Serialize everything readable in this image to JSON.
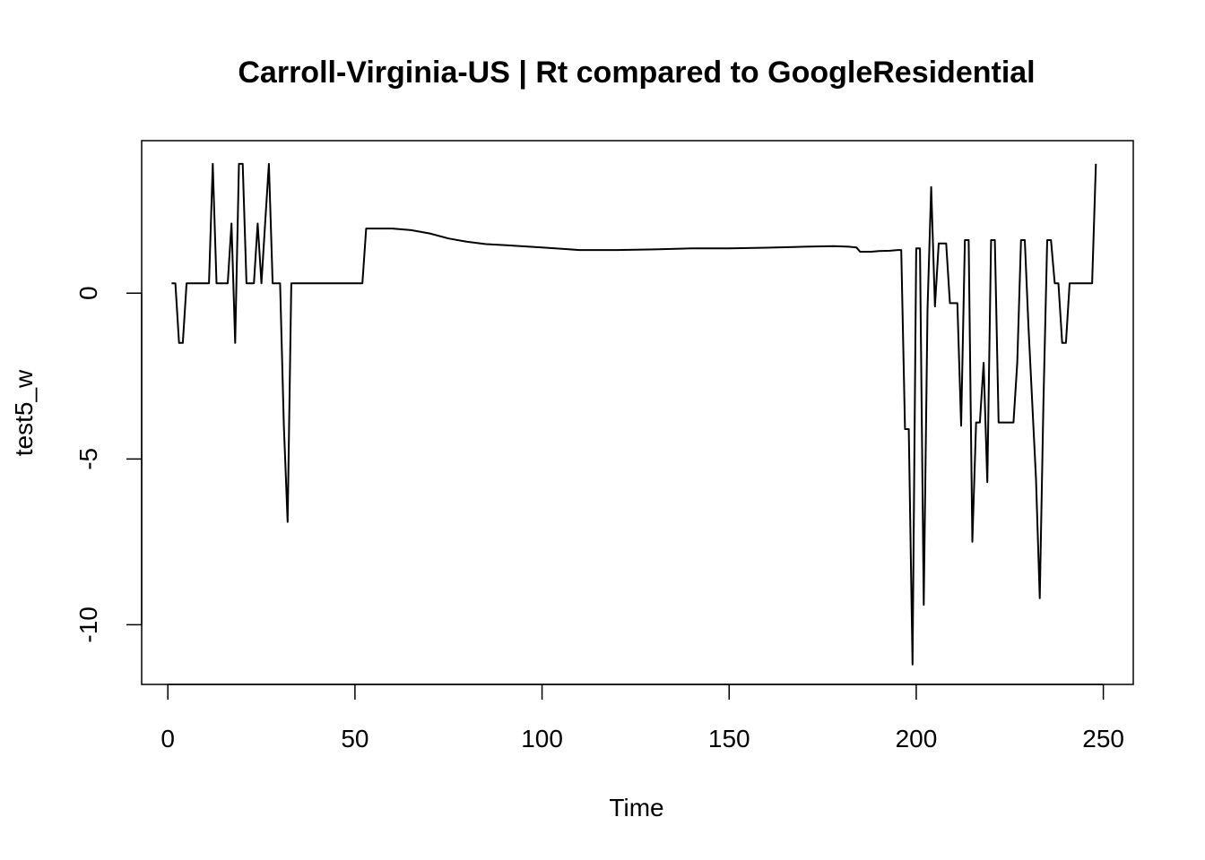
{
  "chart_data": {
    "type": "line",
    "title": "Carroll-Virginia-US | Rt compared to GoogleResidential",
    "xlabel": "Time",
    "ylabel": "test5_w",
    "xlim": [
      -7,
      258
    ],
    "ylim": [
      -11.8,
      4.6
    ],
    "x_ticks": [
      0,
      50,
      100,
      150,
      200,
      250
    ],
    "x_tick_labels": [
      "0",
      "50",
      "100",
      "150",
      "200",
      "250"
    ],
    "y_ticks": [
      -10,
      -5,
      0
    ],
    "y_tick_labels": [
      "-10",
      "-5",
      "0"
    ],
    "grid": false,
    "series": [
      {
        "color": "#000000",
        "x": [
          1,
          2,
          3,
          4,
          5,
          6,
          7,
          8,
          9,
          10,
          11,
          12,
          13,
          14,
          15,
          16,
          17,
          18,
          19,
          20,
          21,
          22,
          23,
          24,
          25,
          26,
          27,
          28,
          29,
          30,
          31,
          32,
          33,
          34,
          40,
          45,
          50,
          52,
          53,
          55,
          60,
          65,
          70,
          75,
          80,
          85,
          90,
          100,
          110,
          120,
          130,
          140,
          150,
          160,
          170,
          178,
          182,
          184,
          185,
          188,
          190,
          193,
          195,
          196,
          197,
          198,
          199,
          200,
          201,
          202,
          203,
          204,
          205,
          206,
          207,
          208,
          209,
          210,
          211,
          212,
          213,
          214,
          215,
          216,
          217,
          218,
          219,
          220,
          221,
          222,
          223,
          224,
          225,
          226,
          227,
          228,
          229,
          230,
          231,
          232,
          233,
          234,
          235,
          236,
          237,
          238,
          239,
          240,
          241,
          242,
          243,
          244,
          245,
          246,
          247,
          248
        ],
        "y": [
          0.3,
          0.3,
          -1.5,
          -1.5,
          0.3,
          0.3,
          0.3,
          0.3,
          0.3,
          0.3,
          0.3,
          3.9,
          0.3,
          0.3,
          0.3,
          0.3,
          2.1,
          -1.5,
          3.9,
          3.9,
          0.3,
          0.3,
          0.3,
          2.1,
          0.3,
          2.1,
          3.9,
          0.3,
          0.3,
          0.3,
          -4.0,
          -6.9,
          0.3,
          0.3,
          0.3,
          0.3,
          0.3,
          0.3,
          1.95,
          1.95,
          1.95,
          1.9,
          1.8,
          1.65,
          1.55,
          1.48,
          1.45,
          1.38,
          1.3,
          1.3,
          1.32,
          1.35,
          1.35,
          1.37,
          1.4,
          1.42,
          1.4,
          1.38,
          1.25,
          1.25,
          1.27,
          1.28,
          1.3,
          1.3,
          -4.1,
          -4.1,
          -11.2,
          1.35,
          1.35,
          -9.4,
          -0.5,
          3.2,
          -0.4,
          1.5,
          1.5,
          1.5,
          -0.3,
          -0.3,
          -0.3,
          -4.0,
          1.6,
          1.6,
          -7.5,
          -3.9,
          -3.9,
          -2.1,
          -5.7,
          1.6,
          1.6,
          -3.9,
          -3.9,
          -3.9,
          -3.9,
          -3.9,
          -2.1,
          1.6,
          1.6,
          -1.0,
          -3.3,
          -5.6,
          -9.2,
          -3.3,
          1.6,
          1.6,
          0.3,
          0.3,
          -1.5,
          -1.5,
          0.3,
          0.3,
          0.3,
          0.3,
          0.3,
          0.3,
          0.3,
          3.9
        ]
      }
    ]
  }
}
